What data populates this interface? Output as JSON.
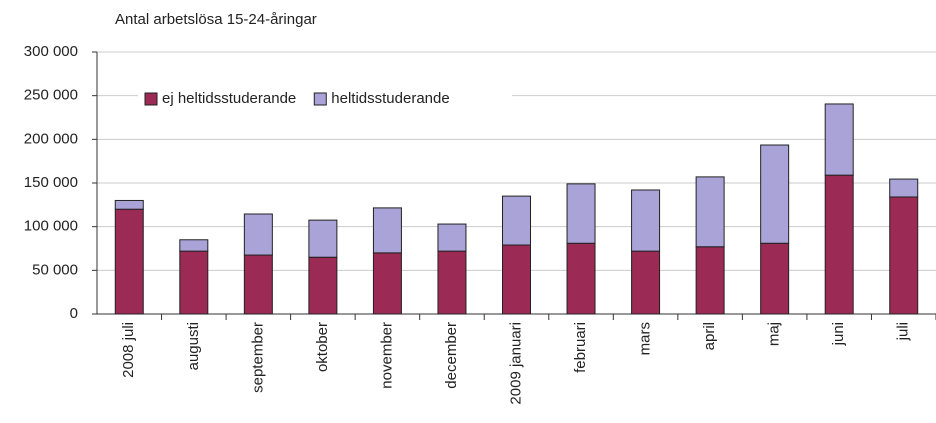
{
  "chart_data": {
    "type": "stacked_bar",
    "title": "Antal arbetslösa 15-24-åringar",
    "categories": [
      "2008 juli",
      "augusti",
      "september",
      "oktober",
      "november",
      "december",
      "2009 januari",
      "februari",
      "mars",
      "april",
      "maj",
      "juni",
      "juli"
    ],
    "series": [
      {
        "name": "ej heltidsstuderande",
        "color": "#9b2a55",
        "values": [
          120000,
          72000,
          67500,
          65000,
          70000,
          72000,
          79000,
          81000,
          72000,
          77000,
          81000,
          159000,
          134000
        ]
      },
      {
        "name": "heltidsstuderande",
        "color": "#aaa3d7",
        "values": [
          10000,
          13000,
          47000,
          42500,
          51500,
          31000,
          56000,
          68000,
          70000,
          80000,
          112500,
          81500,
          20500
        ]
      }
    ],
    "ylim": [
      0,
      300000
    ],
    "yticks": [
      0,
      {
        "value": 50000,
        "label": "50 000"
      },
      {
        "value": 100000,
        "label": "100 000"
      },
      {
        "value": 150000,
        "label": "150 000"
      },
      {
        "value": 200000,
        "label": "200 000"
      },
      {
        "value": 250000,
        "label": "250 000"
      },
      {
        "value": 300000,
        "label": "300 000"
      }
    ],
    "grid": true
  }
}
